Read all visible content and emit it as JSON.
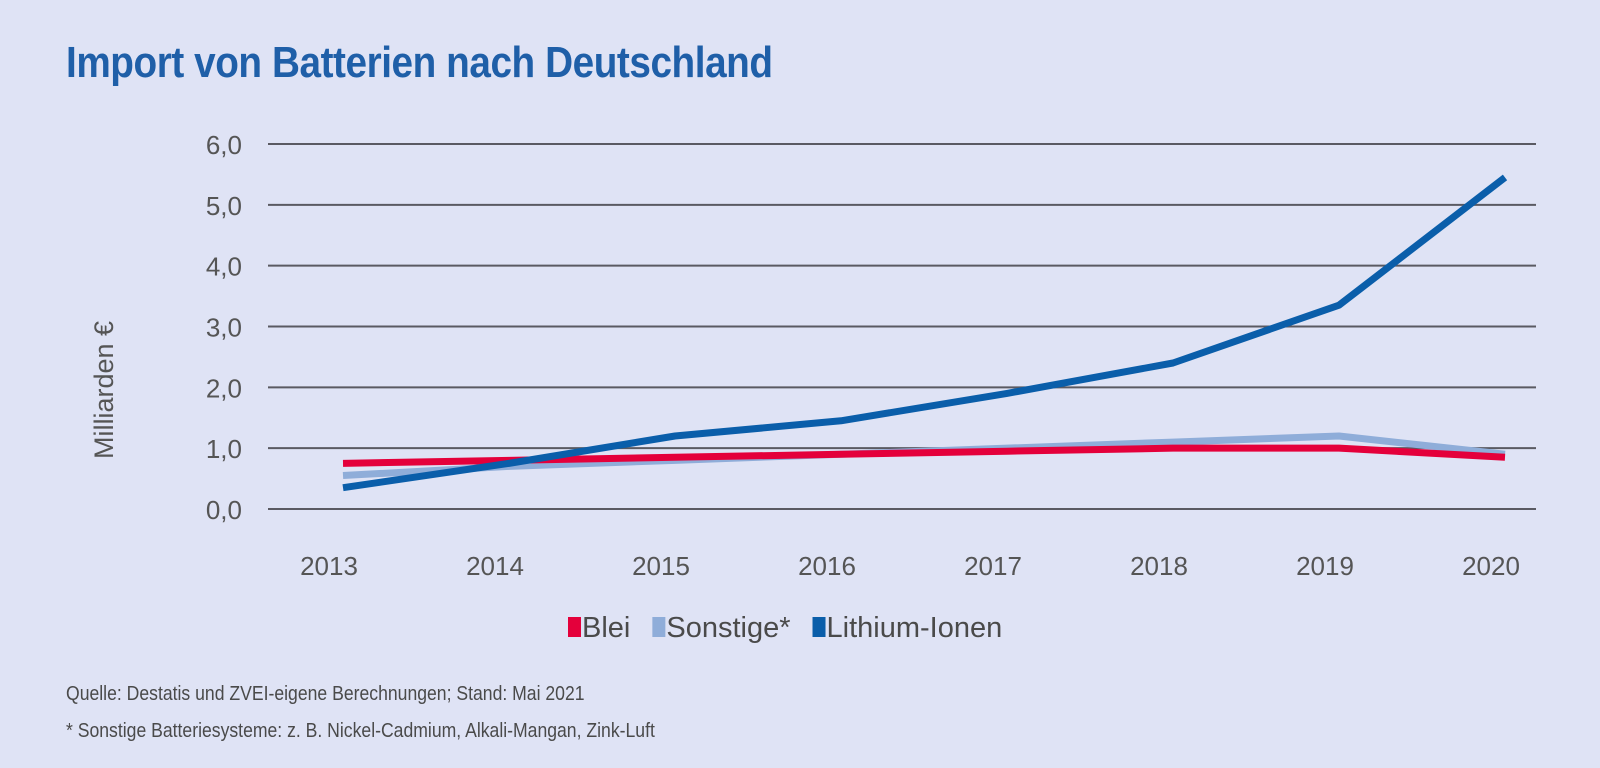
{
  "chart_data": {
    "type": "line",
    "title": "Import von Batterien nach Deutschland",
    "xlabel": "",
    "ylabel": "Milliarden €",
    "x": [
      "2013",
      "2014",
      "2015",
      "2016",
      "2017",
      "2018",
      "2019",
      "2020"
    ],
    "ylim": [
      0,
      6
    ],
    "yticks": [
      "0,0",
      "1,0",
      "2,0",
      "3,0",
      "4,0",
      "5,0",
      "6,0"
    ],
    "grid": true,
    "legend_position": "bottom-center",
    "series": [
      {
        "name": "Blei",
        "color": "#e4003b",
        "values": [
          0.75,
          0.8,
          0.85,
          0.9,
          0.95,
          1.0,
          1.0,
          0.85
        ]
      },
      {
        "name": "Sonstige*",
        "color": "#8fadd9",
        "values": [
          0.55,
          0.7,
          0.8,
          0.9,
          1.0,
          1.1,
          1.2,
          0.9
        ]
      },
      {
        "name": "Lithium-Ionen",
        "color": "#0a5eaa",
        "values": [
          0.35,
          0.75,
          1.2,
          1.45,
          1.9,
          2.4,
          3.35,
          5.45
        ]
      }
    ]
  },
  "footnotes": {
    "source": "Quelle: Destatis und ZVEI-eigene Berechnungen; Stand: Mai 2021",
    "note": "* Sonstige Batteriesysteme: z. B. Nickel-Cadmium, Alkali-Mangan, Zink-Luft"
  }
}
